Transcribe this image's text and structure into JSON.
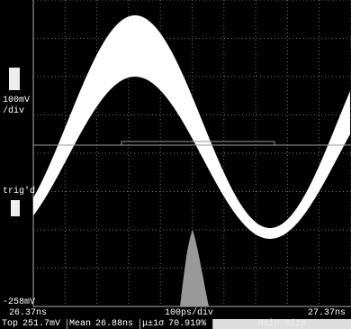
{
  "channel": {
    "scale": "100mV",
    "scale_unit": "/div",
    "trigger_status": "trig'd",
    "offset": "-258mV"
  },
  "timebase": {
    "start": "26.37ns",
    "scale": "100ps/div",
    "end": "27.37ns"
  },
  "measurements": {
    "items": [
      {
        "label": "Top",
        "value": "251.7mV"
      },
      {
        "label": "Mean",
        "value": "26.88ns"
      },
      {
        "label": "μ±1σ",
        "value": "70.919%"
      }
    ],
    "button": "Main Size"
  }
}
